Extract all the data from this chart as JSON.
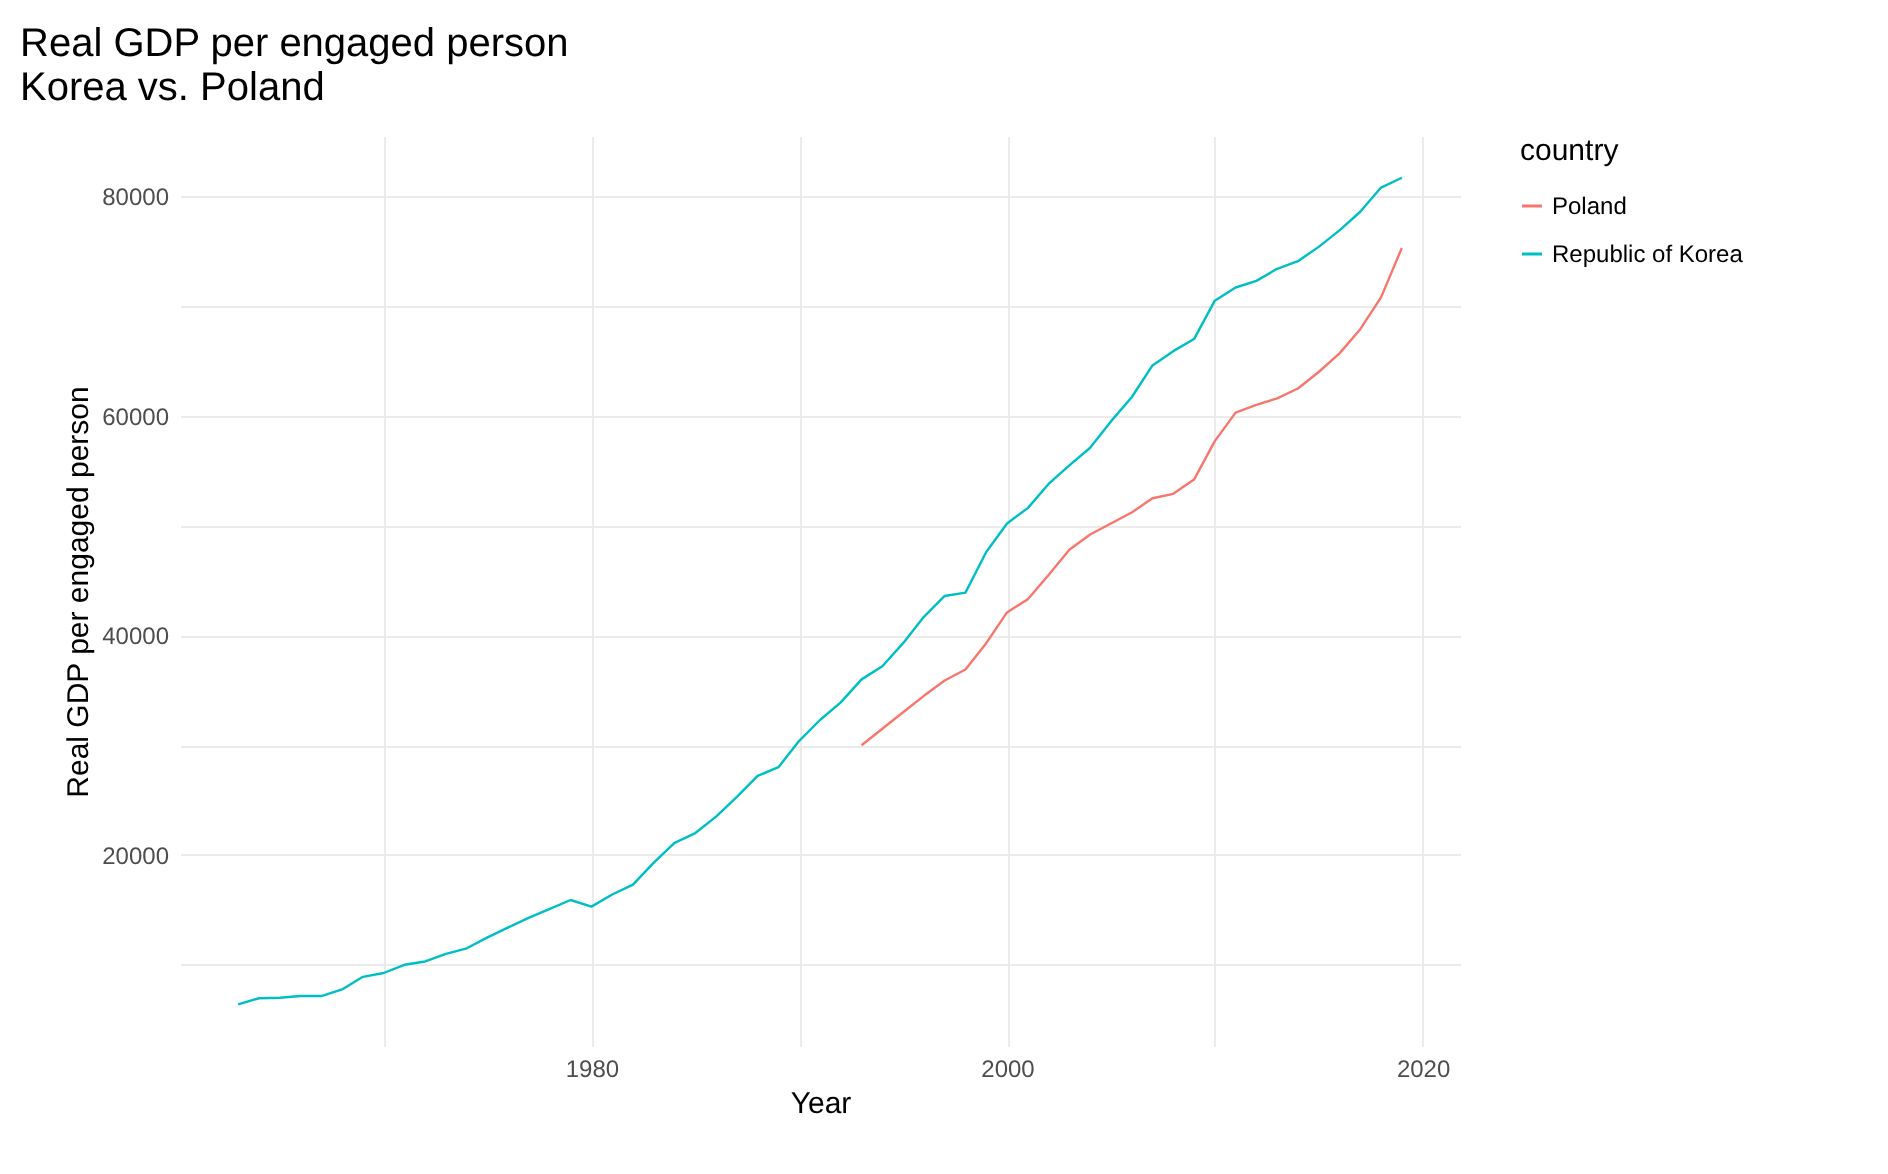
{
  "chart_data": {
    "type": "line",
    "title": "Real GDP per engaged person\n Korea vs. Poland",
    "xlabel": "Year",
    "ylabel": "Real GDP per engaged person",
    "legend_title": "country",
    "legend": "right",
    "grid": true,
    "x": [
      1963,
      1964,
      1965,
      1966,
      1967,
      1968,
      1969,
      1970,
      1971,
      1972,
      1973,
      1974,
      1975,
      1976,
      1977,
      1978,
      1979,
      1980,
      1981,
      1982,
      1983,
      1984,
      1985,
      1986,
      1987,
      1988,
      1989,
      1990,
      1991,
      1992,
      1993,
      1994,
      1995,
      1996,
      1997,
      1998,
      1999,
      2000,
      2001,
      2002,
      2003,
      2004,
      2005,
      2006,
      2007,
      2008,
      2009,
      2010,
      2011,
      2012,
      2013,
      2014,
      2015,
      2016,
      2017,
      2018,
      2019
    ],
    "xlim": [
      1960.2,
      2021.8
    ],
    "xticks": [
      {
        "value": 1970,
        "label": null
      },
      1980,
      {
        "value": 1990,
        "label": null
      },
      2000,
      {
        "value": 2010,
        "label": null
      },
      2020
    ],
    "ylim": [
      2600,
      85500
    ],
    "yticks": [
      {
        "value": 10000,
        "label": null
      },
      20000,
      {
        "value": 30000,
        "label": null
      },
      40000,
      {
        "value": 50000,
        "label": null
      },
      60000,
      {
        "value": 70000,
        "label": null
      },
      80000
    ],
    "series": [
      {
        "name": "Poland",
        "color": "#f8766d",
        "values": [
          null,
          null,
          null,
          null,
          null,
          null,
          null,
          null,
          null,
          null,
          null,
          null,
          null,
          null,
          null,
          null,
          null,
          null,
          null,
          null,
          null,
          null,
          null,
          null,
          null,
          null,
          null,
          null,
          null,
          null,
          30000,
          31500,
          33000,
          34500,
          35900,
          36900,
          39300,
          42100,
          43300,
          45500,
          47800,
          49200,
          50200,
          51200,
          52500,
          52900,
          54200,
          57700,
          60300,
          61000,
          61600,
          62500,
          64000,
          65700,
          67900,
          70800,
          75300
        ]
      },
      {
        "name": "Republic of Korea",
        "color": "#00bfc4",
        "values": [
          6400,
          6950,
          7000,
          7150,
          7150,
          7750,
          8900,
          9250,
          10000,
          10300,
          11000,
          11500,
          12500,
          13400,
          14300,
          15100,
          15900,
          15300,
          16400,
          17300,
          19300,
          21100,
          22000,
          23500,
          25300,
          27200,
          28000,
          30400,
          32300,
          33900,
          36000,
          37200,
          39300,
          41700,
          43600,
          43900,
          47600,
          50200,
          51600,
          53800,
          55500,
          57100,
          59500,
          61700,
          64600,
          65900,
          67000,
          70500,
          71700,
          72300,
          73400,
          74100,
          75400,
          76900,
          78600,
          80800,
          81700
        ]
      }
    ]
  }
}
